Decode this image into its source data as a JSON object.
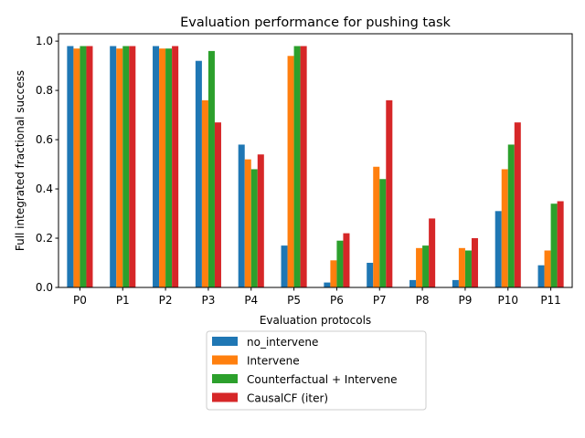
{
  "chart_data": {
    "type": "bar",
    "title": "Evaluation performance for pushing task",
    "xlabel": "Evaluation protocols",
    "ylabel": "Full integrated fractional success",
    "ylim": [
      0,
      1.03
    ],
    "yticks": [
      "0.0",
      "0.2",
      "0.4",
      "0.6",
      "0.8",
      "1.0"
    ],
    "grid": false,
    "legend_position": "below-center",
    "categories": [
      "P0",
      "P1",
      "P2",
      "P3",
      "P4",
      "P5",
      "P6",
      "P7",
      "P8",
      "P9",
      "P10",
      "P11"
    ],
    "series": [
      {
        "name": "no_intervene",
        "color": "#1f77b4",
        "values": [
          0.98,
          0.98,
          0.98,
          0.92,
          0.58,
          0.17,
          0.02,
          0.1,
          0.03,
          0.03,
          0.31,
          0.09
        ]
      },
      {
        "name": "Intervene",
        "color": "#ff7f0e",
        "values": [
          0.97,
          0.97,
          0.97,
          0.76,
          0.52,
          0.94,
          0.11,
          0.49,
          0.16,
          0.16,
          0.48,
          0.15
        ]
      },
      {
        "name": "Counterfactual + Intervene",
        "color": "#2ca02c",
        "values": [
          0.98,
          0.98,
          0.97,
          0.96,
          0.48,
          0.98,
          0.19,
          0.44,
          0.17,
          0.15,
          0.58,
          0.34
        ]
      },
      {
        "name": "CausalCF (iter)",
        "color": "#d62728",
        "values": [
          0.98,
          0.98,
          0.98,
          0.67,
          0.54,
          0.98,
          0.22,
          0.76,
          0.28,
          0.2,
          0.67,
          0.35
        ]
      }
    ]
  }
}
